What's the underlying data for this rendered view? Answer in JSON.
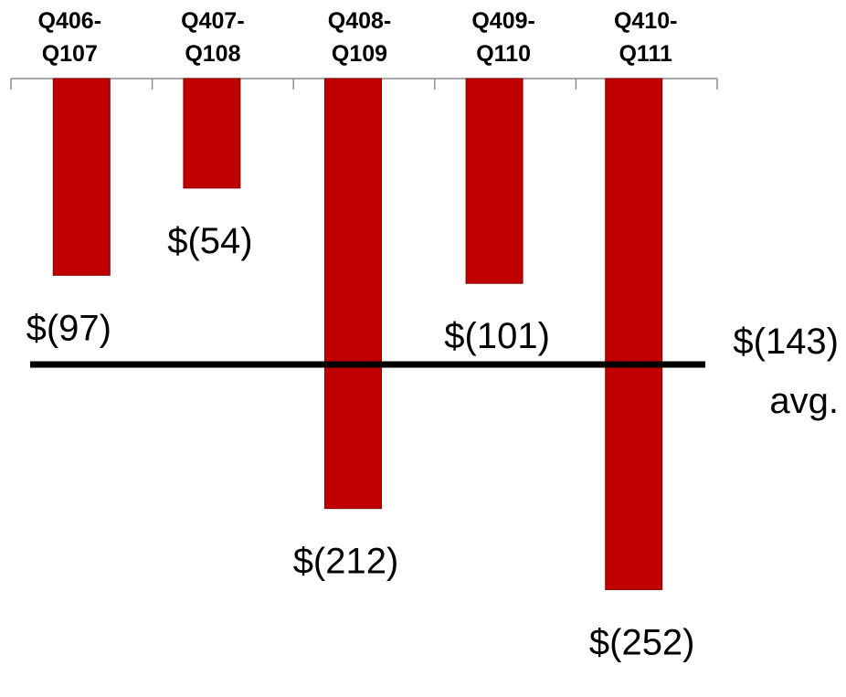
{
  "chart_data": {
    "type": "bar",
    "orientation": "downward",
    "categories": [
      "Q406-Q107",
      "Q407-Q108",
      "Q408-Q109",
      "Q409-Q110",
      "Q410-Q111"
    ],
    "category_lines": [
      [
        "Q406-",
        "Q107"
      ],
      [
        "Q407-",
        "Q108"
      ],
      [
        "Q408-",
        "Q109"
      ],
      [
        "Q409-",
        "Q110"
      ],
      [
        "Q410-",
        "Q111"
      ]
    ],
    "values": [
      -97,
      -54,
      -212,
      -101,
      -252
    ],
    "value_labels": [
      "$(97)",
      "$(54)",
      "$(212)",
      "$(101)",
      "$(252)"
    ],
    "title": "",
    "xlabel": "",
    "ylabel": "",
    "ylim": [
      -252,
      0
    ],
    "category_axis_position": "top",
    "grid": false,
    "legend": "none",
    "reference_line": {
      "value": -143,
      "label_lines": [
        "$(143)",
        "avg."
      ]
    },
    "colors": {
      "bar": "#c00000",
      "bar_edge": "#8b0000",
      "reference_line": "#000000",
      "axis": "#8c8c8c"
    }
  }
}
